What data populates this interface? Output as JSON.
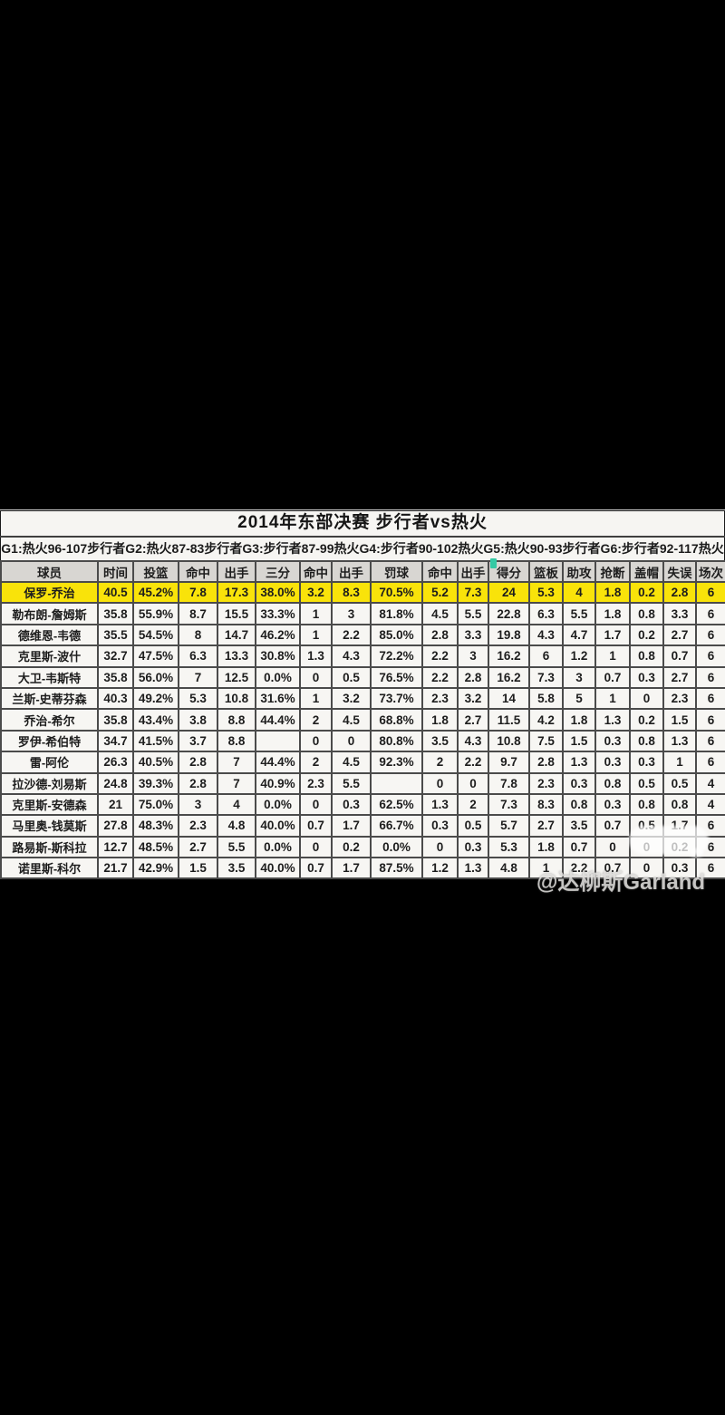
{
  "page": {
    "watermark": "@达柳斯Garland"
  },
  "colors": {
    "highlight_yellow": "#f9e30a",
    "header_gray": "#d8d6d2",
    "accent_teal": "#35c9a4",
    "border_dark": "#4b4b4b"
  },
  "table": {
    "title": "2014年东部决赛 步行者vs热火",
    "results_line": "G1:热火96-107步行者G2:热火87-83步行者G3:步行者87-99热火G4:步行者90-102热火G5:热火90-93步行者G6:步行者92-117热火",
    "columns": [
      "球员",
      "时间",
      "投篮",
      "命中",
      "出手",
      "三分",
      "命中",
      "出手",
      "罚球",
      "命中",
      "出手",
      "得分",
      "篮板",
      "助攻",
      "抢断",
      "盖帽",
      "失误",
      "场次"
    ],
    "rows": [
      {
        "name": "保罗-乔治",
        "highlight": true,
        "stats": [
          "40.5",
          "45.2%",
          "7.8",
          "17.3",
          "38.0%",
          "3.2",
          "8.3",
          "70.5%",
          "5.2",
          "7.3",
          "24",
          "5.3",
          "4",
          "1.8",
          "0.2",
          "2.8",
          "6"
        ]
      },
      {
        "name": "勒布朗-詹姆斯",
        "highlight": false,
        "stats": [
          "35.8",
          "55.9%",
          "8.7",
          "15.5",
          "33.3%",
          "1",
          "3",
          "81.8%",
          "4.5",
          "5.5",
          "22.8",
          "6.3",
          "5.5",
          "1.8",
          "0.8",
          "3.3",
          "6"
        ]
      },
      {
        "name": "德维恩-韦德",
        "highlight": false,
        "stats": [
          "35.5",
          "54.5%",
          "8",
          "14.7",
          "46.2%",
          "1",
          "2.2",
          "85.0%",
          "2.8",
          "3.3",
          "19.8",
          "4.3",
          "4.7",
          "1.7",
          "0.2",
          "2.7",
          "6"
        ]
      },
      {
        "name": "克里斯-波什",
        "highlight": false,
        "stats": [
          "32.7",
          "47.5%",
          "6.3",
          "13.3",
          "30.8%",
          "1.3",
          "4.3",
          "72.2%",
          "2.2",
          "3",
          "16.2",
          "6",
          "1.2",
          "1",
          "0.8",
          "0.7",
          "6"
        ]
      },
      {
        "name": "大卫-韦斯特",
        "highlight": false,
        "stats": [
          "35.8",
          "56.0%",
          "7",
          "12.5",
          "0.0%",
          "0",
          "0.5",
          "76.5%",
          "2.2",
          "2.8",
          "16.2",
          "7.3",
          "3",
          "0.7",
          "0.3",
          "2.7",
          "6"
        ]
      },
      {
        "name": "兰斯-史蒂芬森",
        "highlight": false,
        "stats": [
          "40.3",
          "49.2%",
          "5.3",
          "10.8",
          "31.6%",
          "1",
          "3.2",
          "73.7%",
          "2.3",
          "3.2",
          "14",
          "5.8",
          "5",
          "1",
          "0",
          "2.3",
          "6"
        ]
      },
      {
        "name": "乔治-希尔",
        "highlight": false,
        "stats": [
          "35.8",
          "43.4%",
          "3.8",
          "8.8",
          "44.4%",
          "2",
          "4.5",
          "68.8%",
          "1.8",
          "2.7",
          "11.5",
          "4.2",
          "1.8",
          "1.3",
          "0.2",
          "1.5",
          "6"
        ]
      },
      {
        "name": "罗伊-希伯特",
        "highlight": false,
        "stats": [
          "34.7",
          "41.5%",
          "3.7",
          "8.8",
          "",
          "0",
          "0",
          "80.8%",
          "3.5",
          "4.3",
          "10.8",
          "7.5",
          "1.5",
          "0.3",
          "0.8",
          "1.3",
          "6"
        ]
      },
      {
        "name": "雷-阿伦",
        "highlight": false,
        "stats": [
          "26.3",
          "40.5%",
          "2.8",
          "7",
          "44.4%",
          "2",
          "4.5",
          "92.3%",
          "2",
          "2.2",
          "9.7",
          "2.8",
          "1.3",
          "0.3",
          "0.3",
          "1",
          "6"
        ]
      },
      {
        "name": "拉沙德-刘易斯",
        "highlight": false,
        "stats": [
          "24.8",
          "39.3%",
          "2.8",
          "7",
          "40.9%",
          "2.3",
          "5.5",
          "",
          "0",
          "0",
          "7.8",
          "2.3",
          "0.3",
          "0.8",
          "0.5",
          "0.5",
          "4"
        ]
      },
      {
        "name": "克里斯-安德森",
        "highlight": false,
        "stats": [
          "21",
          "75.0%",
          "3",
          "4",
          "0.0%",
          "0",
          "0.3",
          "62.5%",
          "1.3",
          "2",
          "7.3",
          "8.3",
          "0.8",
          "0.3",
          "0.8",
          "0.8",
          "4"
        ]
      },
      {
        "name": "马里奥-钱莫斯",
        "highlight": false,
        "stats": [
          "27.8",
          "48.3%",
          "2.3",
          "4.8",
          "40.0%",
          "0.7",
          "1.7",
          "66.7%",
          "0.3",
          "0.5",
          "5.7",
          "2.7",
          "3.5",
          "0.7",
          "0.5",
          "1.7",
          "6"
        ]
      },
      {
        "name": "路易斯-斯科拉",
        "highlight": false,
        "stats": [
          "12.7",
          "48.5%",
          "2.7",
          "5.5",
          "0.0%",
          "0",
          "0.2",
          "0.0%",
          "0",
          "0.3",
          "5.3",
          "1.8",
          "0.7",
          "0",
          "0",
          "0.2",
          "6"
        ]
      },
      {
        "name": "诺里斯-科尔",
        "highlight": false,
        "stats": [
          "21.7",
          "42.9%",
          "1.5",
          "3.5",
          "40.0%",
          "0.7",
          "1.7",
          "87.5%",
          "1.2",
          "1.3",
          "4.8",
          "1",
          "2.2",
          "0.7",
          "0",
          "0.3",
          "6"
        ]
      }
    ]
  }
}
